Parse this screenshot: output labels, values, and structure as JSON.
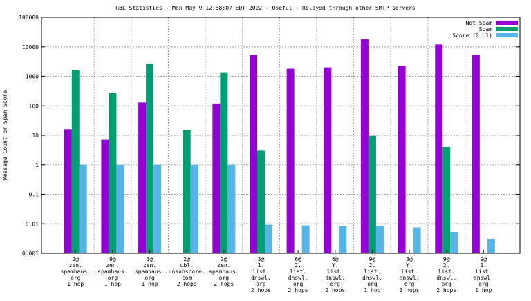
{
  "chart_data": {
    "type": "bar",
    "title": "RBL Statistics - Mon May  9 12:58:07 EDT 2022 - Useful - Relayed through other SMTP servers",
    "xlabel": "",
    "ylabel": "Message Count or Spam Score",
    "yscale": "log",
    "ylim": [
      0.001,
      100000
    ],
    "yticks": [
      "0.001",
      "0.01",
      "0.1",
      "1",
      "10",
      "100",
      "1000",
      "10000",
      "100000"
    ],
    "grid": true,
    "legend_position": "top-right",
    "categories": [
      [
        "2@",
        "zen.",
        "spamhaus.",
        "org",
        "1 hop"
      ],
      [
        "9@",
        "zen.",
        "spamhaus.",
        "org",
        "1 hop"
      ],
      [
        "3@",
        "zen.",
        "spamhaus.",
        "org",
        "1 hop"
      ],
      [
        "2@",
        "ubl.",
        "unsubscore.",
        "com",
        "2 hops"
      ],
      [
        "2@",
        "zen.",
        "spamhaus.",
        "org",
        "2 hops"
      ],
      [
        "3@",
        "1.",
        "list.",
        "dnswl.",
        "org",
        "2 hops"
      ],
      [
        "6@",
        "2.",
        "list.",
        "dnswl.",
        "org",
        "2 hops"
      ],
      [
        "6@",
        "Y.",
        "list.",
        "dnswl.",
        "org",
        "2 hops"
      ],
      [
        "9@",
        "2.",
        "list.",
        "dnswl.",
        "org",
        "1 hop"
      ],
      [
        "3@",
        "Y.",
        "list.",
        "dnswl.",
        "org",
        "3 hops"
      ],
      [
        "9@",
        "2.",
        "list.",
        "dnswl.",
        "org",
        "2 hops"
      ],
      [
        "9@",
        "1.",
        "list.",
        "dnswl.",
        "org",
        "1 hop"
      ]
    ],
    "series": [
      {
        "name": "Not Spam",
        "color": "#9400d3",
        "values": [
          16,
          7,
          130,
          0,
          120,
          5200,
          1800,
          2000,
          18000,
          2200,
          12000,
          5200
        ]
      },
      {
        "name": "Spam",
        "color": "#009e73",
        "values": [
          1600,
          270,
          2700,
          15,
          1300,
          3,
          0,
          0,
          9.6,
          0,
          4,
          0
        ]
      },
      {
        "name": "Score (0..1)",
        "color": "#56b4e9",
        "values": [
          1,
          1,
          1,
          1,
          1,
          0.0093,
          0.0088,
          0.0083,
          0.0083,
          0.0075,
          0.0053,
          0.0031
        ]
      }
    ]
  }
}
